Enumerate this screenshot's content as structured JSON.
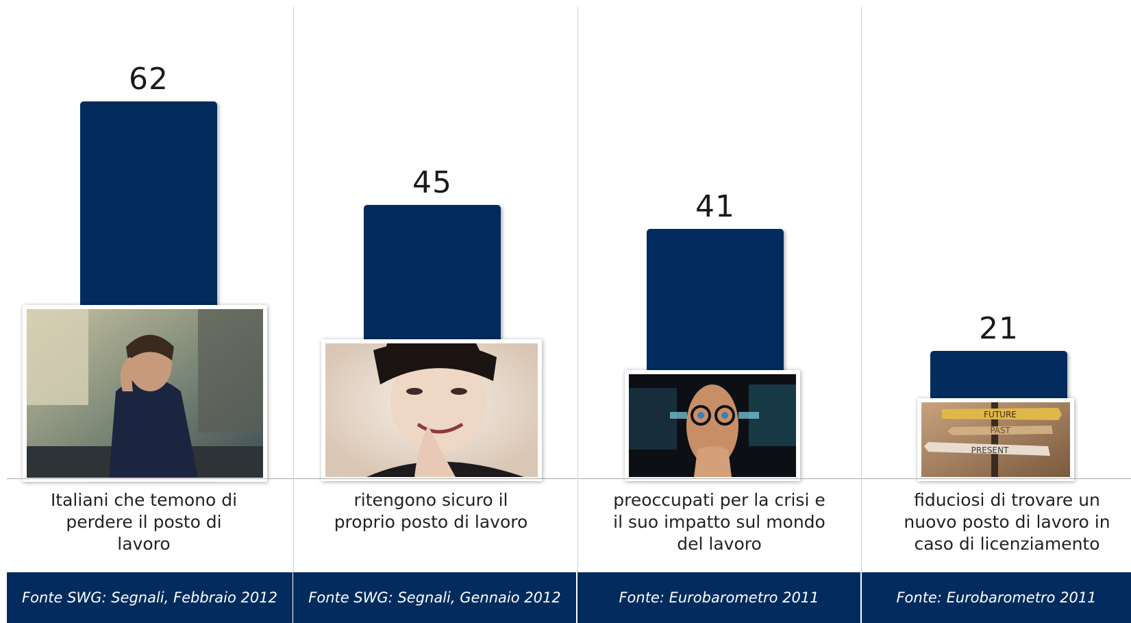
{
  "chart_data": {
    "type": "bar",
    "categories": [
      "Italiani che temono di perdere il posto di lavoro",
      "ritengono sicuro il proprio posto di lavoro",
      "preoccupati per la crisi e il suo impatto sul mondo del lavoro",
      "fiduciosi di trovare un nuovo posto di lavoro in caso di licenziamento"
    ],
    "values": [
      62,
      45,
      41,
      21
    ],
    "data_labels": [
      "62",
      "45",
      "41",
      "21"
    ],
    "sources": [
      "Fonte SWG: Segnali, Febbraio 2012",
      "Fonte SWG: Segnali, Gennaio 2012",
      "Fonte: Eurobarometro 2011",
      "Fonte: Eurobarometro 2011"
    ],
    "ylim": [
      0,
      62
    ],
    "bar_color": "#022c5d",
    "photo_icons": [
      "worried-man-photo",
      "smiling-woman-photo",
      "anxious-man-photo",
      "signpost-photo"
    ],
    "sign_words": [
      "FUTURE",
      "PAST",
      "PRESENT"
    ]
  }
}
